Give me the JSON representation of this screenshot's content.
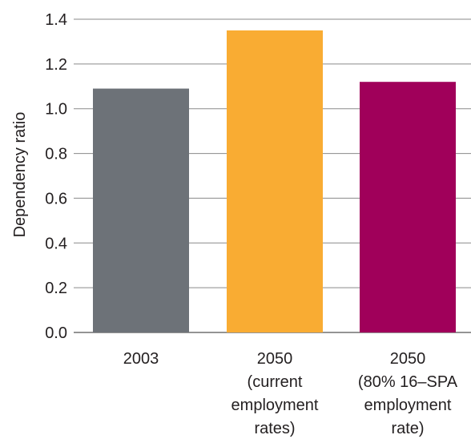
{
  "chart_data": {
    "type": "bar",
    "title": "",
    "xlabel": "",
    "ylabel": "Dependency ratio",
    "ylim": [
      0,
      1.4
    ],
    "yticks": [
      "0.0",
      "0.2",
      "0.4",
      "0.6",
      "0.8",
      "1.0",
      "1.2",
      "1.4"
    ],
    "grid": true,
    "categories": [
      [
        "2003"
      ],
      [
        "2050",
        "(current",
        "employment",
        "rates)"
      ],
      [
        "2050",
        "(80% 16–SPA",
        "employment",
        "rate)"
      ]
    ],
    "values": [
      1.09,
      1.35,
      1.12
    ],
    "colors": [
      "#6d7278",
      "#f9ac33",
      "#a0005a"
    ]
  }
}
